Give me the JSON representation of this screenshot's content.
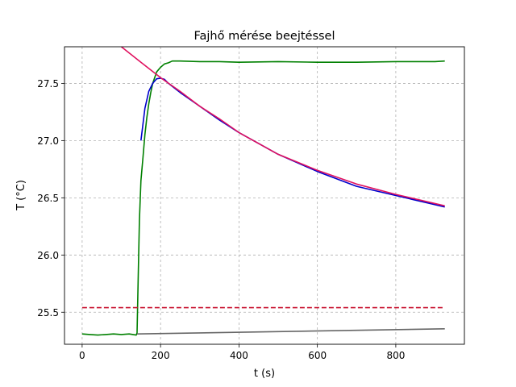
{
  "chart_data": {
    "type": "line",
    "title": "Fajhő mérése beejtéssel",
    "xlabel": "t (s)",
    "ylabel": "T (°C)",
    "xlim": [
      -45,
      975
    ],
    "ylim": [
      25.22,
      27.82
    ],
    "xticks": [
      0,
      200,
      400,
      600,
      800
    ],
    "yticks": [
      25.5,
      26.0,
      26.5,
      27.0,
      27.5
    ],
    "xtick_labels": [
      "0",
      "200",
      "400",
      "600",
      "800"
    ],
    "ytick_labels": [
      "25.5",
      "26.0",
      "26.5",
      "27.0",
      "27.5"
    ],
    "grid": true,
    "legend": "none",
    "colors": {
      "measured": "#008000",
      "fit_segment": "#0000cc",
      "cooling_fit": "#e0115f",
      "baseline": "#666666",
      "reference_level": "#c8102e"
    },
    "series": [
      {
        "key": "measured",
        "style": "solid",
        "x": [
          0,
          20,
          40,
          60,
          80,
          100,
          120,
          138,
          140,
          143,
          146,
          150,
          155,
          160,
          165,
          170,
          175,
          180,
          190,
          200,
          210,
          220,
          230,
          250,
          300,
          350,
          400,
          500,
          600,
          700,
          800,
          900,
          925
        ],
        "y": [
          25.31,
          25.305,
          25.3,
          25.305,
          25.31,
          25.305,
          25.31,
          25.3,
          25.32,
          25.8,
          26.3,
          26.65,
          26.85,
          27.05,
          27.2,
          27.32,
          27.42,
          27.5,
          27.6,
          27.64,
          27.67,
          27.68,
          27.695,
          27.695,
          27.69,
          27.69,
          27.685,
          27.69,
          27.685,
          27.685,
          27.69,
          27.69,
          27.695
        ]
      },
      {
        "key": "fit_segment",
        "style": "solid",
        "x": [
          150,
          160,
          170,
          180,
          190,
          200,
          210,
          220,
          250,
          300,
          350,
          400,
          500,
          600,
          700,
          800,
          925
        ],
        "y": [
          27.0,
          27.28,
          27.43,
          27.5,
          27.54,
          27.545,
          27.535,
          27.5,
          27.42,
          27.3,
          27.18,
          27.07,
          26.88,
          26.73,
          26.6,
          26.52,
          26.42
        ]
      },
      {
        "key": "cooling_fit",
        "style": "solid",
        "x": [
          100,
          150,
          200,
          250,
          300,
          350,
          400,
          500,
          600,
          700,
          800,
          925
        ],
        "y": [
          27.82,
          27.685,
          27.55,
          27.43,
          27.3,
          27.19,
          27.07,
          26.88,
          26.74,
          26.62,
          26.53,
          26.43
        ]
      },
      {
        "key": "baseline",
        "style": "solid",
        "x": [
          140,
          925
        ],
        "y": [
          25.31,
          25.355
        ]
      },
      {
        "key": "reference_level",
        "style": "dashed",
        "x": [
          0,
          925
        ],
        "y": [
          25.54,
          25.54
        ]
      }
    ]
  }
}
